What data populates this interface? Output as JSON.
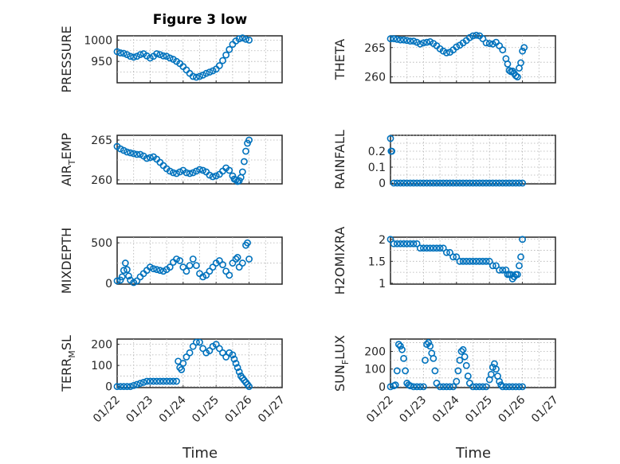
{
  "figure": {
    "title": "Figure 3 low"
  },
  "colors": {
    "marker": "#0072bd"
  },
  "chart_data": [
    {
      "type": "scatter",
      "panel": "pressure",
      "title": "Figure 3 low",
      "ylabel": "PRESSURE",
      "ylabel_sub": "",
      "ylabel_tail": "",
      "xlabel": "",
      "xlim": [
        0,
        5
      ],
      "ylim": [
        900,
        1010
      ],
      "yticks": [
        950,
        1000
      ],
      "grid": true,
      "show_xticks": false,
      "series": [
        {
          "marker": "circle",
          "x": [
            0,
            0.1,
            0.2,
            0.3,
            0.4,
            0.5,
            0.6,
            0.7,
            0.8,
            0.9,
            1.0,
            1.1,
            1.2,
            1.3,
            1.4,
            1.5,
            1.6,
            1.7,
            1.8,
            1.9,
            2.0,
            2.1,
            2.2,
            2.3,
            2.4,
            2.5,
            2.6,
            2.7,
            2.8,
            2.9,
            3.0,
            3.1,
            3.2,
            3.3,
            3.4,
            3.5,
            3.6,
            3.7,
            3.8,
            3.9,
            4.0
          ],
          "y": [
            973,
            970,
            969,
            966,
            962,
            960,
            962,
            966,
            968,
            963,
            958,
            962,
            968,
            966,
            963,
            962,
            958,
            955,
            950,
            945,
            938,
            930,
            922,
            915,
            913,
            915,
            918,
            922,
            925,
            928,
            932,
            940,
            952,
            965,
            978,
            990,
            998,
            1003,
            1005,
            1002,
            1000
          ]
        }
      ]
    },
    {
      "type": "scatter",
      "panel": "theta",
      "title": "",
      "ylabel": "THETA",
      "ylabel_sub": "",
      "ylabel_tail": "",
      "xlabel": "",
      "xlim": [
        0,
        5
      ],
      "ylim": [
        259,
        267
      ],
      "yticks": [
        260,
        265
      ],
      "grid": true,
      "show_xticks": false,
      "series": [
        {
          "marker": "circle",
          "x": [
            0,
            0.1,
            0.2,
            0.3,
            0.4,
            0.5,
            0.6,
            0.7,
            0.8,
            0.9,
            1.0,
            1.1,
            1.2,
            1.3,
            1.4,
            1.5,
            1.6,
            1.7,
            1.8,
            1.9,
            2.0,
            2.1,
            2.2,
            2.3,
            2.4,
            2.5,
            2.6,
            2.7,
            2.8,
            2.9,
            3.0,
            3.1,
            3.2,
            3.3,
            3.4,
            3.5,
            3.55,
            3.6,
            3.65,
            3.7,
            3.75,
            3.8,
            3.85,
            3.9,
            3.95,
            4.0,
            4.05
          ],
          "y": [
            266.5,
            266.5,
            266.4,
            266.3,
            266.3,
            266.2,
            266.1,
            266.1,
            265.9,
            265.6,
            265.8,
            265.9,
            266.0,
            265.7,
            265.3,
            264.8,
            264.4,
            264.1,
            264.2,
            264.6,
            265.1,
            265.4,
            265.8,
            266.2,
            266.7,
            267.0,
            267.1,
            267.0,
            266.5,
            265.8,
            265.7,
            265.6,
            265.9,
            265.3,
            264.6,
            263.1,
            262.2,
            261.1,
            260.9,
            261.0,
            260.6,
            260.2,
            260.0,
            261.5,
            262.4,
            264.4,
            265.0
          ]
        }
      ]
    },
    {
      "type": "scatter",
      "panel": "air_temp",
      "title": "",
      "ylabel": "AIR",
      "ylabel_sub": "T",
      "ylabel_tail": "EMP",
      "xlabel": "",
      "xlim": [
        0,
        5
      ],
      "ylim": [
        259.5,
        265.6
      ],
      "yticks": [
        260,
        265
      ],
      "grid": true,
      "show_xticks": false,
      "series": [
        {
          "marker": "circle",
          "x": [
            0,
            0.1,
            0.2,
            0.3,
            0.4,
            0.5,
            0.6,
            0.7,
            0.8,
            0.9,
            1.0,
            1.1,
            1.2,
            1.3,
            1.4,
            1.5,
            1.6,
            1.7,
            1.8,
            1.9,
            2.0,
            2.1,
            2.2,
            2.3,
            2.4,
            2.5,
            2.6,
            2.7,
            2.8,
            2.9,
            3.0,
            3.1,
            3.2,
            3.3,
            3.4,
            3.5,
            3.55,
            3.6,
            3.65,
            3.7,
            3.75,
            3.8,
            3.85,
            3.9,
            3.95,
            4.0
          ],
          "y": [
            264.2,
            263.9,
            263.7,
            263.5,
            263.4,
            263.3,
            263.2,
            263.2,
            263.0,
            262.7,
            262.8,
            262.9,
            262.6,
            262.2,
            261.8,
            261.4,
            261.1,
            260.9,
            260.8,
            261.0,
            261.2,
            260.9,
            260.8,
            260.9,
            261.1,
            261.3,
            261.2,
            261.0,
            260.6,
            260.4,
            260.5,
            260.7,
            261.1,
            261.5,
            261.2,
            260.5,
            260.1,
            260.0,
            259.8,
            259.9,
            260.3,
            261.0,
            262.3,
            263.6,
            264.6,
            265.0
          ]
        }
      ]
    },
    {
      "type": "scatter",
      "panel": "rainfall",
      "title": "",
      "ylabel": "RAINFALL",
      "ylabel_sub": "",
      "ylabel_tail": "",
      "xlabel": "",
      "xlim": [
        0,
        5
      ],
      "ylim": [
        -0.005,
        0.3
      ],
      "yticks": [
        0,
        0.1,
        0.2
      ],
      "ytick_labels": [
        "0",
        "0.1",
        "0.2"
      ],
      "grid": true,
      "show_xticks": false,
      "series": [
        {
          "marker": "circle",
          "x": [
            0,
            0.02,
            0.04,
            0.1,
            0.2,
            0.3,
            0.4,
            0.5,
            0.6,
            0.7,
            0.8,
            0.9,
            1.0,
            1.1,
            1.2,
            1.3,
            1.4,
            1.5,
            1.6,
            1.7,
            1.8,
            1.9,
            2.0,
            2.1,
            2.2,
            2.3,
            2.4,
            2.5,
            2.6,
            2.7,
            2.8,
            2.9,
            3.0,
            3.1,
            3.2,
            3.3,
            3.4,
            3.5,
            3.6,
            3.7,
            3.8,
            3.9,
            4.0
          ],
          "y": [
            0.28,
            0.2,
            0.2,
            0,
            0,
            0,
            0,
            0,
            0,
            0,
            0,
            0,
            0,
            0,
            0,
            0,
            0,
            0,
            0,
            0,
            0,
            0,
            0,
            0,
            0,
            0,
            0,
            0,
            0,
            0,
            0,
            0,
            0,
            0,
            0,
            0,
            0,
            0,
            0,
            0,
            0,
            0,
            0
          ]
        }
      ]
    },
    {
      "type": "scatter",
      "panel": "mixdepth",
      "title": "",
      "ylabel": "MIXDEPTH",
      "ylabel_sub": "",
      "ylabel_tail": "",
      "xlabel": "",
      "xlim": [
        0,
        5
      ],
      "ylim": [
        -10,
        570
      ],
      "yticks": [
        0,
        500
      ],
      "grid": true,
      "show_xticks": false,
      "series": [
        {
          "marker": "circle",
          "x": [
            0,
            0.1,
            0.15,
            0.2,
            0.25,
            0.3,
            0.35,
            0.4,
            0.5,
            0.6,
            0.7,
            0.8,
            0.9,
            1.0,
            1.1,
            1.2,
            1.3,
            1.4,
            1.5,
            1.6,
            1.7,
            1.8,
            1.9,
            2.0,
            2.1,
            2.2,
            2.3,
            2.4,
            2.5,
            2.6,
            2.7,
            2.8,
            2.9,
            3.0,
            3.1,
            3.2,
            3.3,
            3.4,
            3.5,
            3.6,
            3.65,
            3.7,
            3.8,
            3.9,
            3.95,
            4.0
          ],
          "y": [
            30,
            40,
            80,
            160,
            250,
            170,
            90,
            40,
            10,
            30,
            80,
            120,
            160,
            200,
            180,
            170,
            160,
            150,
            170,
            200,
            260,
            300,
            280,
            200,
            150,
            220,
            300,
            220,
            120,
            80,
            100,
            150,
            200,
            250,
            280,
            230,
            150,
            100,
            250,
            300,
            320,
            200,
            250,
            470,
            500,
            300
          ]
        }
      ]
    },
    {
      "type": "scatter",
      "panel": "h2omixra",
      "title": "",
      "ylabel": "H2OMIXRA",
      "ylabel_sub": "",
      "ylabel_tail": "",
      "xlabel": "",
      "xlim": [
        0,
        5
      ],
      "ylim": [
        0.98,
        2.05
      ],
      "yticks": [
        1,
        1.5,
        2
      ],
      "ytick_labels": [
        "1",
        "1.5",
        "2"
      ],
      "grid": true,
      "show_xticks": false,
      "series": [
        {
          "marker": "circle",
          "x": [
            0,
            0.1,
            0.2,
            0.3,
            0.4,
            0.5,
            0.6,
            0.7,
            0.8,
            0.9,
            1.0,
            1.1,
            1.2,
            1.3,
            1.4,
            1.5,
            1.6,
            1.7,
            1.8,
            1.9,
            2.0,
            2.1,
            2.2,
            2.3,
            2.4,
            2.5,
            2.6,
            2.7,
            2.8,
            2.9,
            3.0,
            3.1,
            3.2,
            3.3,
            3.4,
            3.5,
            3.55,
            3.6,
            3.65,
            3.7,
            3.75,
            3.8,
            3.85,
            3.9,
            3.95,
            4.0
          ],
          "y": [
            2.0,
            1.9,
            1.9,
            1.9,
            1.9,
            1.9,
            1.9,
            1.9,
            1.9,
            1.8,
            1.8,
            1.8,
            1.8,
            1.8,
            1.8,
            1.8,
            1.8,
            1.7,
            1.7,
            1.6,
            1.6,
            1.5,
            1.5,
            1.5,
            1.5,
            1.5,
            1.5,
            1.5,
            1.5,
            1.5,
            1.5,
            1.4,
            1.4,
            1.3,
            1.3,
            1.3,
            1.2,
            1.2,
            1.2,
            1.1,
            1.15,
            1.2,
            1.2,
            1.4,
            1.6,
            2.0
          ]
        }
      ]
    },
    {
      "type": "scatter",
      "panel": "terr_msl",
      "title": "",
      "ylabel": "TERR",
      "ylabel_sub": "M",
      "ylabel_tail": "SL",
      "xlabel": "",
      "xlim": [
        0,
        5
      ],
      "ylim": [
        -5,
        225
      ],
      "yticks": [
        0,
        100,
        200
      ],
      "grid": true,
      "show_xticks": false,
      "series": [
        {
          "marker": "circle",
          "x": [
            0,
            0.1,
            0.2,
            0.3,
            0.4,
            0.5,
            0.6,
            0.7,
            0.8,
            0.9,
            1.0,
            1.1,
            1.2,
            1.3,
            1.4,
            1.5,
            1.6,
            1.7,
            1.8,
            1.85,
            1.9,
            1.95,
            2.0,
            2.1,
            2.2,
            2.3,
            2.4,
            2.5,
            2.6,
            2.7,
            2.8,
            2.9,
            3.0,
            3.1,
            3.2,
            3.3,
            3.4,
            3.5,
            3.55,
            3.6,
            3.65,
            3.7,
            3.75,
            3.8,
            3.85,
            3.9,
            3.95,
            4.0
          ],
          "y": [
            0,
            0,
            0,
            0,
            0,
            5,
            10,
            15,
            20,
            25,
            25,
            25,
            25,
            25,
            25,
            25,
            25,
            25,
            25,
            120,
            90,
            80,
            110,
            140,
            160,
            190,
            210,
            210,
            180,
            160,
            170,
            190,
            200,
            180,
            160,
            140,
            160,
            150,
            130,
            110,
            90,
            70,
            50,
            40,
            30,
            20,
            10,
            0
          ]
        }
      ]
    },
    {
      "type": "scatter",
      "panel": "sun_flux",
      "title": "",
      "ylabel": "SUN",
      "ylabel_sub": "F",
      "ylabel_tail": "LUX",
      "xlabel": "",
      "xlim": [
        0,
        5
      ],
      "ylim": [
        -5,
        270
      ],
      "yticks": [
        0,
        100,
        200
      ],
      "grid": true,
      "show_xticks": false,
      "series": [
        {
          "marker": "circle",
          "x": [
            0,
            0.1,
            0.15,
            0.2,
            0.25,
            0.3,
            0.35,
            0.4,
            0.45,
            0.5,
            0.55,
            0.6,
            0.7,
            0.8,
            0.9,
            1.0,
            1.05,
            1.1,
            1.15,
            1.2,
            1.25,
            1.3,
            1.35,
            1.4,
            1.5,
            1.6,
            1.7,
            1.8,
            1.9,
            2.0,
            2.05,
            2.1,
            2.15,
            2.2,
            2.25,
            2.3,
            2.35,
            2.4,
            2.5,
            2.6,
            2.7,
            2.8,
            2.9,
            3.0,
            3.05,
            3.1,
            3.15,
            3.2,
            3.25,
            3.3,
            3.35,
            3.4,
            3.5,
            3.6,
            3.7,
            3.8,
            3.9,
            4.0
          ],
          "y": [
            0,
            5,
            10,
            90,
            240,
            230,
            210,
            160,
            90,
            20,
            10,
            5,
            0,
            0,
            0,
            0,
            150,
            240,
            250,
            230,
            190,
            160,
            90,
            20,
            0,
            0,
            0,
            0,
            0,
            30,
            90,
            150,
            200,
            210,
            170,
            120,
            60,
            20,
            0,
            0,
            0,
            0,
            0,
            40,
            70,
            110,
            130,
            100,
            60,
            30,
            10,
            0,
            0,
            0,
            0,
            0,
            0,
            0
          ]
        }
      ]
    }
  ],
  "x_axis": {
    "tick_labels": [
      "01/22",
      "01/23",
      "01/24",
      "01/25",
      "01/26",
      "01/27"
    ],
    "xlabel": "Time"
  }
}
